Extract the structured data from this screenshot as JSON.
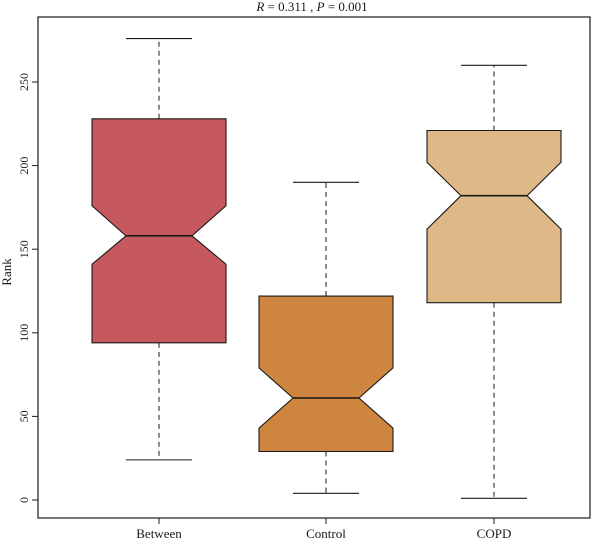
{
  "chart_data": {
    "type": "boxplot",
    "title_parts": [
      {
        "text": "R",
        "italic": true
      },
      {
        "text": " = 0.311 , ",
        "italic": false
      },
      {
        "text": "P",
        "italic": true
      },
      {
        "text": " = 0.001",
        "italic": false
      }
    ],
    "ylabel": "Rank",
    "xlabel": "",
    "ylim": [
      -10,
      285
    ],
    "yticks": [
      0,
      50,
      100,
      150,
      200,
      250
    ],
    "notched": true,
    "grid": false,
    "categories": [
      "Between",
      "Control",
      "COPD"
    ],
    "boxes": [
      {
        "name": "Between",
        "min": 24,
        "q1": 94,
        "median": 158,
        "q3": 228,
        "max": 276,
        "notch_low": 141,
        "notch_high": 176,
        "color": "#c6585f"
      },
      {
        "name": "Control",
        "min": 4,
        "q1": 29,
        "median": 61,
        "q3": 122,
        "max": 190,
        "notch_low": 43,
        "notch_high": 79,
        "color": "#cd853f"
      },
      {
        "name": "COPD",
        "min": 1,
        "q1": 118,
        "median": 182,
        "q3": 221,
        "max": 260,
        "notch_low": 162,
        "notch_high": 202,
        "color": "#deb887"
      }
    ]
  }
}
